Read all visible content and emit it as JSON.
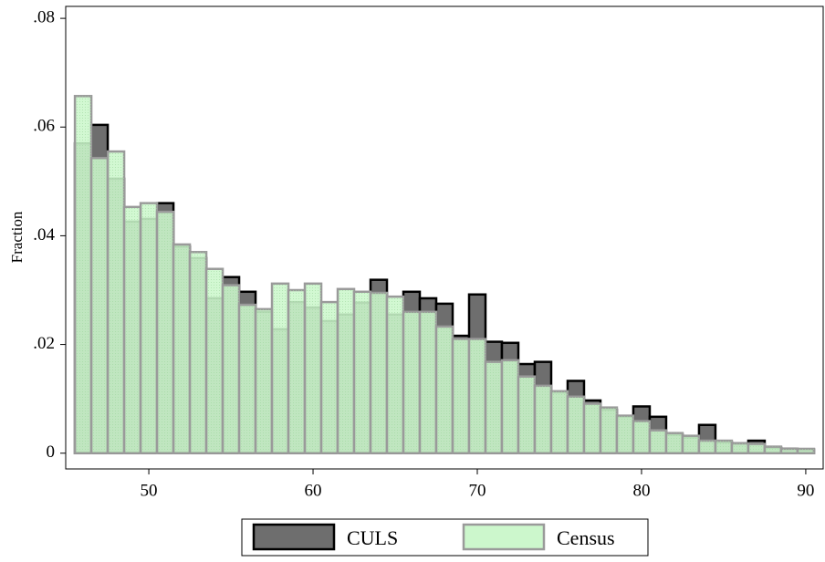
{
  "chart_data": {
    "type": "histogram",
    "y_label": "Fraction",
    "bins": [
      45.5,
      46.5,
      47.5,
      48.5,
      49.5,
      50.5,
      51.5,
      52.5,
      53.5,
      54.5,
      55.5,
      56.5,
      57.5,
      58.5,
      59.5,
      60.5,
      61.5,
      62.5,
      63.5,
      64.5,
      65.5,
      66.5,
      67.5,
      68.5,
      69.5,
      70.5,
      71.5,
      72.5,
      73.5,
      74.5,
      75.5,
      76.5,
      77.5,
      78.5,
      79.5,
      80.5,
      81.5,
      82.5,
      83.5,
      84.5,
      85.5,
      86.5,
      87.5,
      88.5,
      89.5,
      90.5
    ],
    "series": [
      {
        "name": "CULS",
        "color": "#6e6e6e",
        "values": [
          0.057,
          0.0604,
          0.0505,
          0.0426,
          0.0431,
          0.046,
          0.038,
          0.0359,
          0.0285,
          0.0324,
          0.0297,
          0.026,
          0.0228,
          0.0278,
          0.0268,
          0.0243,
          0.0255,
          0.0277,
          0.0319,
          0.0255,
          0.0297,
          0.0285,
          0.0275,
          0.0216,
          0.0292,
          0.0205,
          0.0203,
          0.0164,
          0.0168,
          0.0112,
          0.0133,
          0.0097,
          0.008,
          0.0067,
          0.0086,
          0.0067,
          0.0034,
          0.0029,
          0.0052,
          0.002,
          0.0018,
          0.0023,
          0.001,
          0.0008,
          0.0007
        ]
      },
      {
        "name": "Census",
        "color": "#ccf7cc",
        "values": [
          0.0657,
          0.0543,
          0.0555,
          0.0453,
          0.046,
          0.0444,
          0.0384,
          0.037,
          0.0339,
          0.0309,
          0.0273,
          0.0265,
          0.0312,
          0.03,
          0.0312,
          0.0278,
          0.0302,
          0.0297,
          0.0295,
          0.0288,
          0.026,
          0.026,
          0.0233,
          0.021,
          0.021,
          0.0168,
          0.0171,
          0.0141,
          0.0124,
          0.0114,
          0.0104,
          0.0091,
          0.0084,
          0.0069,
          0.0059,
          0.0042,
          0.0037,
          0.0032,
          0.0023,
          0.0023,
          0.0018,
          0.0017,
          0.0012,
          0.0008,
          0.0008
        ]
      }
    ],
    "xlim": [
      44.94,
      91.06
    ],
    "xticks": [
      50,
      60,
      70,
      80,
      90
    ],
    "ylim": [
      -0.0029,
      0.0822
    ],
    "yticks": [
      0,
      {
        "value": 0.02,
        "label": ".02"
      },
      {
        "value": 0.04,
        "label": ".04"
      },
      {
        "value": 0.06,
        "label": ".06"
      },
      {
        "value": 0.08,
        "label": ".08"
      }
    ],
    "legend": "bottom"
  }
}
